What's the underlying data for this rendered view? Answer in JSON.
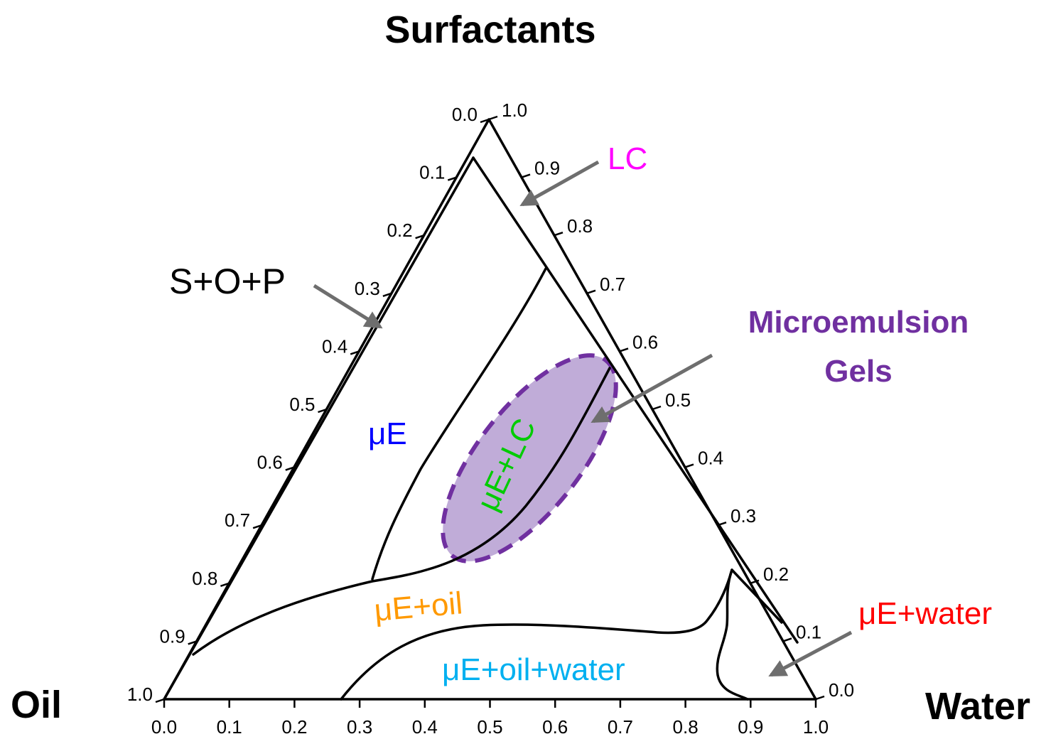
{
  "vertices": {
    "top": "Surfactants",
    "bottom_left": "Oil",
    "bottom_right": "Water"
  },
  "axes": {
    "bottom_ticks": [
      "0.0",
      "0.1",
      "0.2",
      "0.3",
      "0.4",
      "0.5",
      "0.6",
      "0.7",
      "0.8",
      "0.9",
      "1.0"
    ],
    "left_ticks": [
      "0.0",
      "0.1",
      "0.2",
      "0.3",
      "0.4",
      "0.5",
      "0.6",
      "0.7",
      "0.8",
      "0.9",
      "1.0"
    ],
    "right_ticks": [
      "1.0",
      "0.9",
      "0.8",
      "0.7",
      "0.6",
      "0.5",
      "0.4",
      "0.3",
      "0.2",
      "0.1",
      "0.0"
    ]
  },
  "regions": {
    "lc": "LC",
    "sop": "S+O+P",
    "ue": "μE",
    "ue_lc": "μE+LC",
    "ue_oil": "μE+oil",
    "ue_oil_water": "μE+oil+water",
    "ue_water": "μE+water"
  },
  "callout": {
    "line1": "Microemulsion",
    "line2": "Gels"
  },
  "colors": {
    "lc": "#ff00ff",
    "sop": "#000000",
    "ue": "#0000ff",
    "ue_lc": "#00cc00",
    "ue_oil": "#ff9900",
    "ue_oil_water": "#00b0f0",
    "ue_water": "#ff0000",
    "callout": "#7030a0",
    "gel_fill": "#b9a3d4"
  }
}
